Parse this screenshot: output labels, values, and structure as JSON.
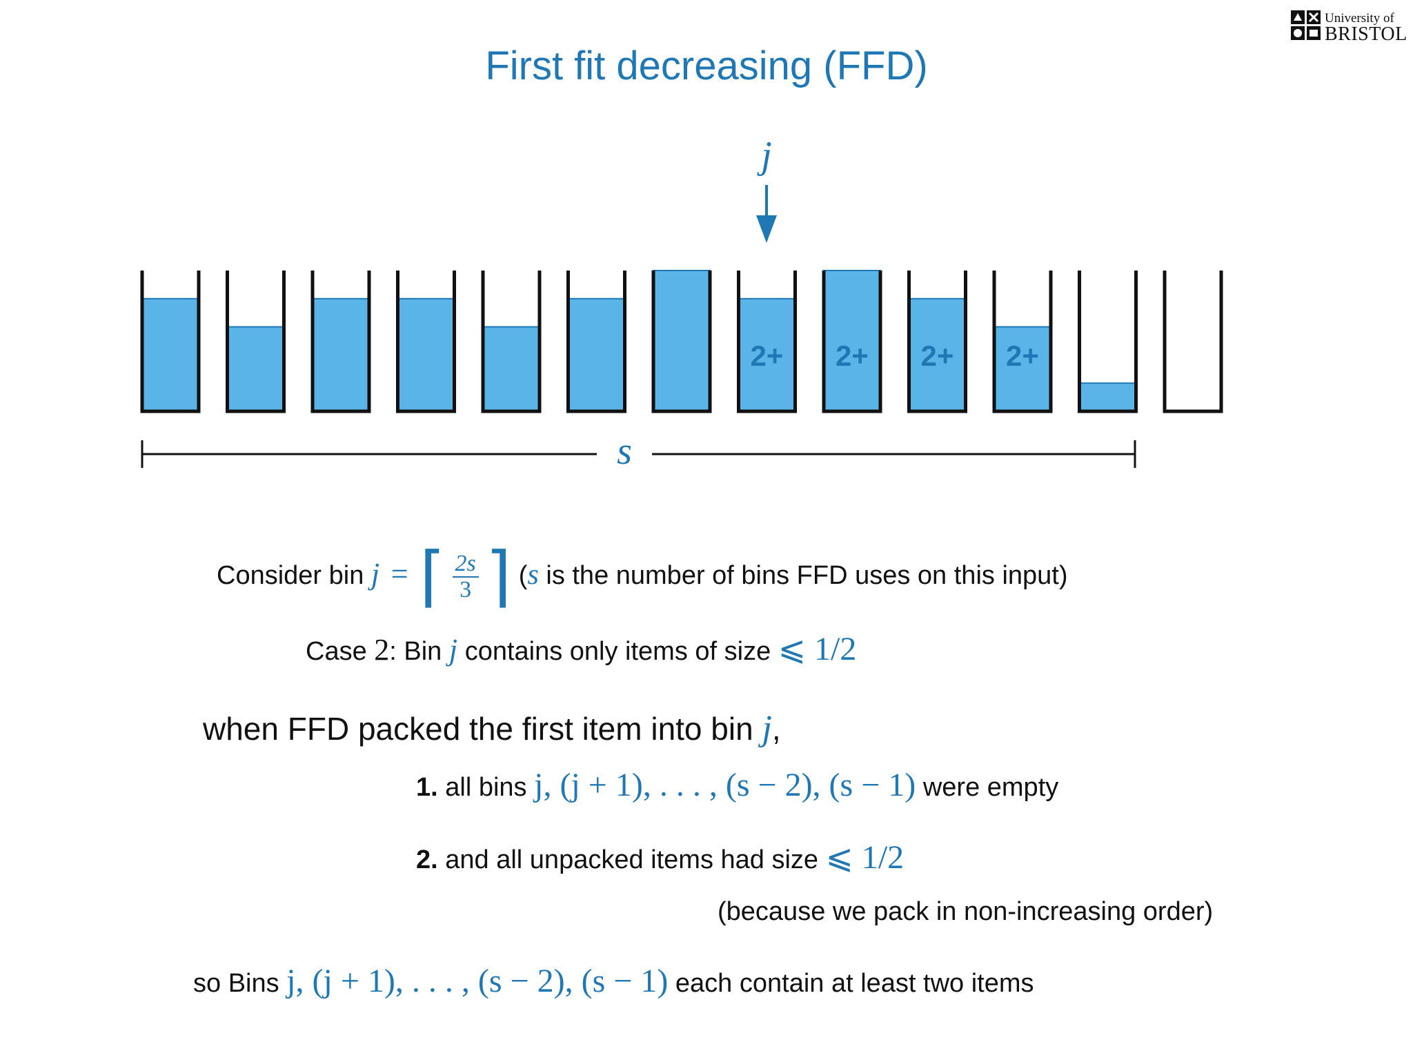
{
  "title": "First fit decreasing (FFD)",
  "logo": {
    "line1": "University of",
    "line2": "BRISTOL"
  },
  "diagram": {
    "pointer_label": "j",
    "span_label": "s",
    "bins": [
      {
        "fill": 0.8,
        "label": ""
      },
      {
        "fill": 0.6,
        "label": ""
      },
      {
        "fill": 0.8,
        "label": ""
      },
      {
        "fill": 0.8,
        "label": ""
      },
      {
        "fill": 0.6,
        "label": ""
      },
      {
        "fill": 0.8,
        "label": ""
      },
      {
        "fill": 1.0,
        "label": ""
      },
      {
        "fill": 0.8,
        "label": "2+"
      },
      {
        "fill": 1.0,
        "label": "2+"
      },
      {
        "fill": 0.8,
        "label": "2+"
      },
      {
        "fill": 0.6,
        "label": "2+"
      },
      {
        "fill": 0.2,
        "label": ""
      },
      {
        "fill": 0.0,
        "label": ""
      }
    ],
    "colors": {
      "fill": "#5ab4e8",
      "accent": "#1f77b4",
      "outline": "#111111"
    }
  },
  "consider": {
    "prefix": "Consider bin",
    "var": "j",
    "eq": "=",
    "num": "2s",
    "den": "3",
    "paren_open": "(",
    "s": "s",
    "suffix": "is the number of bins FFD uses on this input)"
  },
  "case": {
    "prefix": "Case",
    "num": "2",
    "mid": ": Bin",
    "var": "j",
    "suffix": "contains only items of size",
    "math": "⩽ 1/2"
  },
  "when": {
    "prefix": "when FFD packed the first item into bin",
    "var": "j",
    "suffix": ","
  },
  "item1": {
    "num": "1.",
    "prefix": "all bins",
    "math": "j, (j + 1), . . . , (s − 2), (s − 1)",
    "suffix": "were empty"
  },
  "item2": {
    "num": "2.",
    "prefix": "and all unpacked items had size",
    "math": "⩽ 1/2"
  },
  "because": "(because we pack in non-increasing order)",
  "so": {
    "prefix": "so Bins",
    "math": "j, (j + 1), . . . , (s − 2), (s − 1)",
    "suffix": "each contain at least two items"
  }
}
